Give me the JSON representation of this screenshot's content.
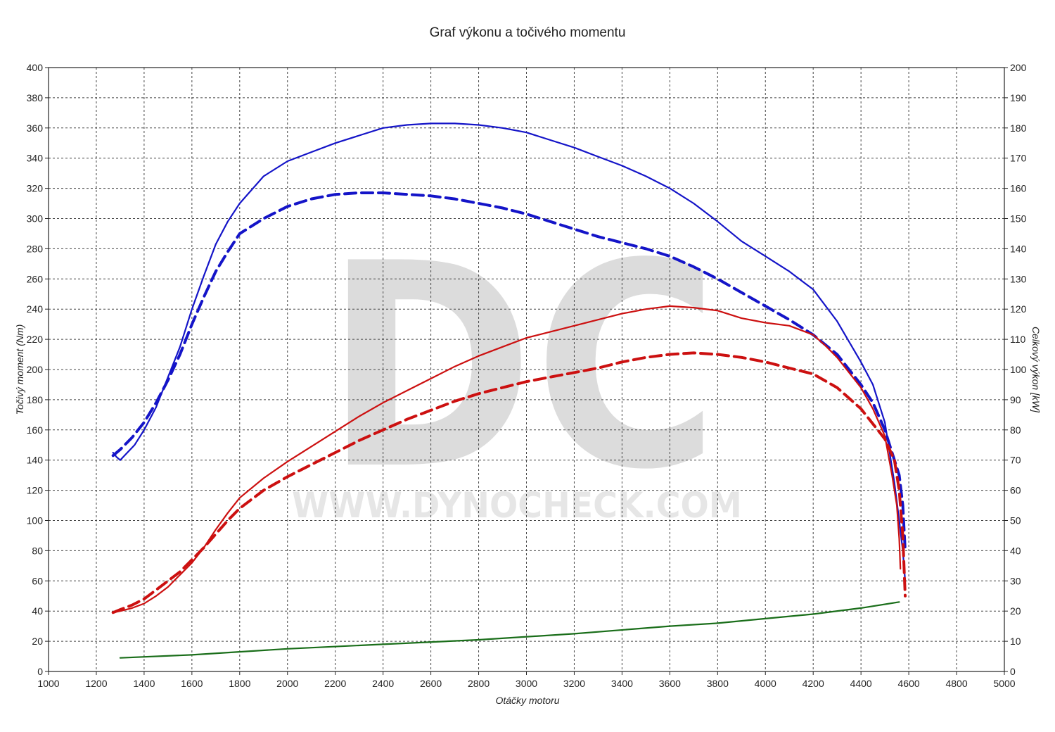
{
  "chart_data": {
    "type": "line",
    "title": "Graf výkonu a točivého momentu",
    "xlabel": "Otáčky motoru",
    "ylabel_left": "Točivý moment (Nm)",
    "ylabel_right": "Celkový výkon [kW]",
    "xlim": [
      1000,
      5000
    ],
    "ylim_left": [
      0,
      400
    ],
    "ylim_right": [
      0,
      200
    ],
    "x_ticks": [
      1000,
      1200,
      1400,
      1600,
      1800,
      2000,
      2200,
      2400,
      2600,
      2800,
      3000,
      3200,
      3400,
      3600,
      3800,
      4000,
      4200,
      4400,
      4600,
      4800,
      5000
    ],
    "y_ticks_left": [
      0,
      20,
      40,
      60,
      80,
      100,
      120,
      140,
      160,
      180,
      200,
      220,
      240,
      260,
      280,
      300,
      320,
      340,
      360,
      380,
      400
    ],
    "y_ticks_right": [
      0,
      10,
      20,
      30,
      40,
      50,
      60,
      70,
      80,
      90,
      100,
      110,
      120,
      130,
      140,
      150,
      160,
      170,
      180,
      190,
      200
    ],
    "grid": true,
    "watermark": {
      "letters": "DC",
      "url": "WWW.DYNOCHECK.COM"
    },
    "colors": {
      "torque": "#1414c8",
      "power": "#cc1010",
      "loss": "#1a6e1a",
      "grid": "#444444"
    },
    "series": [
      {
        "axis": "left",
        "color": "#1414c8",
        "dashed": false,
        "x": [
          1270,
          1285,
          1300,
          1330,
          1360,
          1400,
          1450,
          1500,
          1550,
          1600,
          1650,
          1700,
          1750,
          1800,
          1900,
          2000,
          2100,
          2200,
          2300,
          2400,
          2500,
          2600,
          2700,
          2800,
          2900,
          3000,
          3100,
          3200,
          3300,
          3400,
          3500,
          3600,
          3700,
          3800,
          3900,
          4000,
          4100,
          4200,
          4300,
          4400,
          4450,
          4500,
          4520,
          4540,
          4560,
          4575,
          4585
        ],
        "y": [
          145,
          142,
          140,
          145,
          150,
          160,
          175,
          195,
          215,
          240,
          262,
          283,
          298,
          310,
          328,
          338,
          344,
          350,
          355,
          360,
          362,
          363,
          363,
          362,
          360,
          357,
          352,
          347,
          341,
          335,
          328,
          320,
          310,
          298,
          285,
          275,
          265,
          253,
          232,
          205,
          190,
          165,
          145,
          125,
          100,
          80,
          60
        ]
      },
      {
        "axis": "left",
        "color": "#1414c8",
        "dashed": true,
        "x": [
          1270,
          1300,
          1350,
          1400,
          1450,
          1500,
          1550,
          1600,
          1650,
          1700,
          1750,
          1800,
          1900,
          2000,
          2100,
          2200,
          2300,
          2400,
          2500,
          2600,
          2700,
          2800,
          2900,
          3000,
          3100,
          3200,
          3300,
          3400,
          3500,
          3600,
          3700,
          3800,
          3900,
          4000,
          4100,
          4200,
          4300,
          4400,
          4450,
          4500,
          4530,
          4560,
          4575,
          4585
        ],
        "y": [
          143,
          147,
          155,
          165,
          178,
          193,
          210,
          230,
          248,
          265,
          278,
          290,
          300,
          308,
          313,
          316,
          317,
          317,
          316,
          315,
          313,
          310,
          307,
          303,
          298,
          293,
          288,
          284,
          280,
          275,
          268,
          260,
          251,
          242,
          233,
          223,
          210,
          190,
          178,
          160,
          145,
          130,
          110,
          80
        ]
      },
      {
        "axis": "right",
        "color": "#cc1010",
        "dashed": false,
        "x": [
          1270,
          1300,
          1350,
          1400,
          1450,
          1500,
          1550,
          1600,
          1650,
          1700,
          1750,
          1800,
          1900,
          2000,
          2100,
          2200,
          2300,
          2400,
          2500,
          2600,
          2700,
          2800,
          2900,
          3000,
          3100,
          3200,
          3300,
          3400,
          3500,
          3600,
          3700,
          3800,
          3900,
          4000,
          4100,
          4200,
          4250,
          4300,
          4350,
          4400,
          4450,
          4500,
          4530,
          4550,
          4560,
          4565
        ],
        "y": [
          19.5,
          20,
          21,
          22.5,
          25,
          28,
          32,
          36,
          41,
          47,
          52.5,
          57.5,
          64,
          69.5,
          74.5,
          79.5,
          84.5,
          89,
          93,
          97,
          101,
          104.5,
          107.5,
          110.5,
          112.5,
          114.5,
          116.5,
          118.5,
          120,
          121,
          120.5,
          119.5,
          117,
          115.5,
          114.5,
          111.5,
          108,
          104,
          99,
          94,
          87,
          78,
          65,
          55,
          44,
          34
        ]
      },
      {
        "axis": "right",
        "color": "#cc1010",
        "dashed": true,
        "x": [
          1270,
          1300,
          1350,
          1400,
          1450,
          1500,
          1550,
          1600,
          1650,
          1700,
          1750,
          1800,
          1900,
          2000,
          2100,
          2200,
          2300,
          2400,
          2500,
          2600,
          2700,
          2800,
          2900,
          3000,
          3100,
          3200,
          3300,
          3400,
          3500,
          3600,
          3700,
          3800,
          3900,
          4000,
          4100,
          4200,
          4300,
          4400,
          4450,
          4500,
          4540,
          4560,
          4575,
          4585
        ],
        "y": [
          19.5,
          20.5,
          22,
          24,
          27,
          30,
          33,
          37,
          41,
          45.5,
          50,
          54,
          60,
          64.5,
          68.5,
          72.5,
          76.5,
          80,
          83.5,
          86.5,
          89.5,
          92,
          94,
          96,
          97.5,
          99,
          100.5,
          102.5,
          104,
          105,
          105.5,
          105,
          104,
          102.5,
          100.5,
          98.5,
          94,
          87,
          82,
          77,
          70,
          60,
          45,
          25
        ]
      },
      {
        "axis": "right",
        "color": "#1a6e1a",
        "dashed": false,
        "x": [
          1300,
          1600,
          2000,
          2400,
          2800,
          3200,
          3600,
          3800,
          4000,
          4200,
          4400,
          4560
        ],
        "y": [
          4.5,
          5.5,
          7.5,
          9,
          10.5,
          12.5,
          15,
          16,
          17.5,
          19,
          21,
          23
        ]
      }
    ]
  }
}
